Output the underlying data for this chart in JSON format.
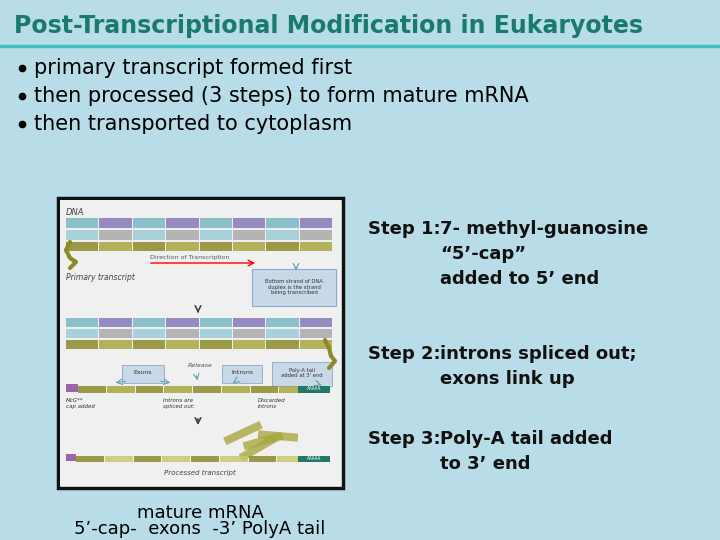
{
  "bg_color": "#b8dce8",
  "title_text": "Post-Transcriptional Modification in Eukaryotes",
  "title_color": "#1a7a6e",
  "title_fontsize": 17,
  "divider_color": "#40c0c0",
  "bullet_color": "#000000",
  "bullet_fontsize": 15,
  "bullets": [
    "primary transcript formed first",
    "then processed (3 steps) to form mature mRNA",
    "then transported to cytoplasm"
  ],
  "step1_label": "Step 1:",
  "step1_text": "7- methyl-guanosine\n“5’-cap”\nadded to 5’ end",
  "step2_label": "Step 2:",
  "step2_text": "introns spliced out;\nexons link up",
  "step3_label": "Step 3:",
  "step3_text": "Poly-A tail added\nto 3’ end",
  "step_fontsize": 13,
  "caption_line1": "mature mRNA",
  "caption_line2": "5’-cap-  exons  -3’ PolyA tail",
  "caption_fontsize": 13,
  "diagram_box_color": "#111111",
  "diagram_bg": "#e8f0f0",
  "dna_stripe1": "#6677bb",
  "dna_stripe2": "#88aaaa",
  "dna_stripe3": "#8899aa",
  "olive": "#8b8b3a",
  "teal_stripe": "#5599aa",
  "purple_stripe": "#7766aa",
  "note_box_bg": "#c8d8e8",
  "note_box_border": "#88aacc"
}
